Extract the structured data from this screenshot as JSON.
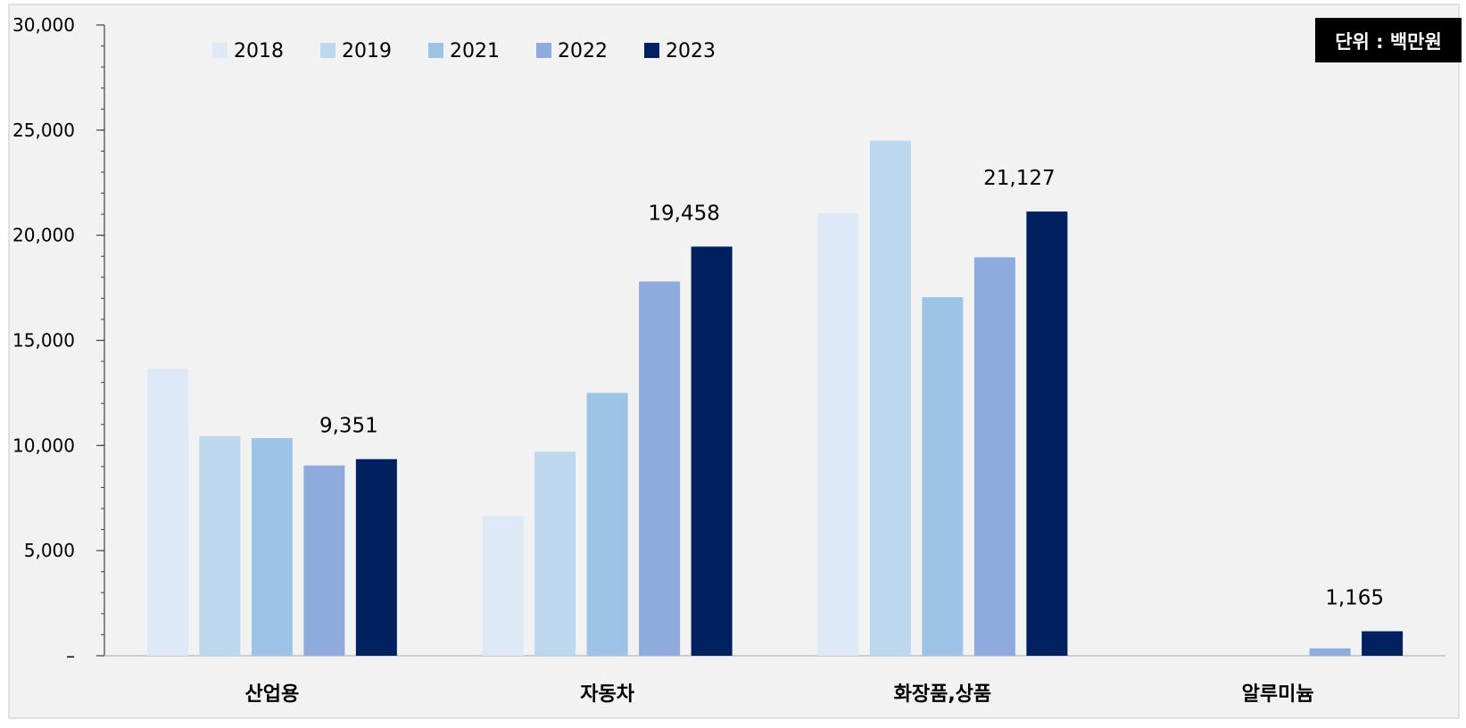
{
  "chart_data": {
    "type": "bar",
    "unit_label": "단위 : 백만원",
    "categories": [
      "산업용",
      "자동차",
      "화장품,상품",
      "알루미늄"
    ],
    "series": [
      {
        "name": "2018",
        "color": "#dde9f6",
        "values": [
          13650,
          6650,
          21050,
          0
        ]
      },
      {
        "name": "2019",
        "color": "#bdd7ee",
        "values": [
          10450,
          9700,
          24500,
          0
        ]
      },
      {
        "name": "2021",
        "color": "#9dc3e6",
        "values": [
          10350,
          12500,
          17050,
          0
        ]
      },
      {
        "name": "2022",
        "color": "#8faadc",
        "values": [
          9050,
          17800,
          18950,
          350
        ]
      },
      {
        "name": "2023",
        "color": "#002060",
        "values": [
          9351,
          19458,
          21127,
          1165
        ]
      }
    ],
    "data_labels": [
      "9,351",
      "19,458",
      "21,127",
      "1,165"
    ],
    "ylim": [
      0,
      30000
    ],
    "yticks": [
      {
        "value": 0,
        "label": "–"
      },
      {
        "value": 5000,
        "label": "5,000"
      },
      {
        "value": 10000,
        "label": "10,000"
      },
      {
        "value": 15000,
        "label": "15,000"
      },
      {
        "value": 20000,
        "label": "20,000"
      },
      {
        "value": 25000,
        "label": "25,000"
      },
      {
        "value": 30000,
        "label": "30,000"
      }
    ],
    "grid": false,
    "legend_position": "top-left"
  }
}
